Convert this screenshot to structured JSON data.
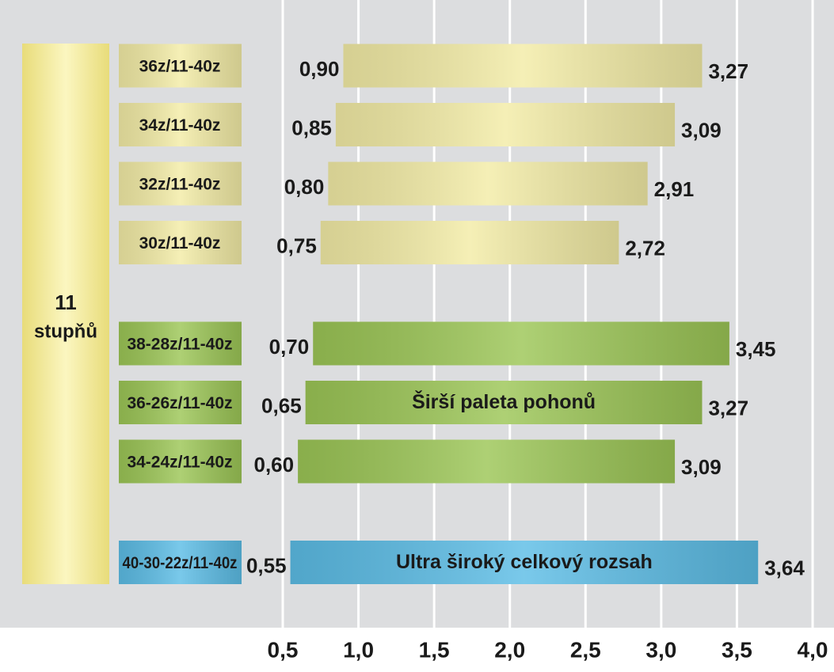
{
  "chart_data": {
    "type": "range-bar",
    "side_label": [
      "11",
      "stupňů"
    ],
    "categories": [
      "36z/11-40z",
      "34z/11-40z",
      "32z/11-40z",
      "30z/11-40z",
      "38-28z/11-40z",
      "36-26z/11-40z",
      "34-24z/11-40z",
      "40-30-22z/11-40z"
    ],
    "low": [
      0.9,
      0.85,
      0.8,
      0.75,
      0.7,
      0.65,
      0.6,
      0.55
    ],
    "low_labels": [
      "0,90",
      "0,85",
      "0,80",
      "0,75",
      "0,70",
      "0,65",
      "0,60",
      "0,55"
    ],
    "high": [
      3.27,
      3.09,
      2.91,
      2.72,
      3.45,
      3.27,
      3.09,
      3.64
    ],
    "high_labels": [
      "3,27",
      "3,09",
      "2,91",
      "2,72",
      "3,45",
      "3,27",
      "3,09",
      "3,64"
    ],
    "colors": [
      "#f3eca6",
      "#f3eca6",
      "#f3eca6",
      "#f3eca6",
      "#9cc656",
      "#9cc656",
      "#9cc656",
      "#5cbde6"
    ],
    "annotations": [
      {
        "index": 5,
        "text": "Širší paleta pohonů"
      },
      {
        "index": 7,
        "text": "Ultra široký celkový rozsah"
      }
    ],
    "xlim": [
      0.5,
      4.0
    ],
    "xticks": [
      {
        "value": 0.5,
        "label": "0,5"
      },
      {
        "value": 1.0,
        "label": "1,0"
      },
      {
        "value": 1.5,
        "label": "1,5"
      },
      {
        "value": 2.0,
        "label": "2,0"
      },
      {
        "value": 2.5,
        "label": "2,5"
      },
      {
        "value": 3.0,
        "label": "3,0"
      },
      {
        "value": 3.5,
        "label": "3,5"
      },
      {
        "value": 4.0,
        "label": "4,0"
      }
    ],
    "grid": true
  }
}
